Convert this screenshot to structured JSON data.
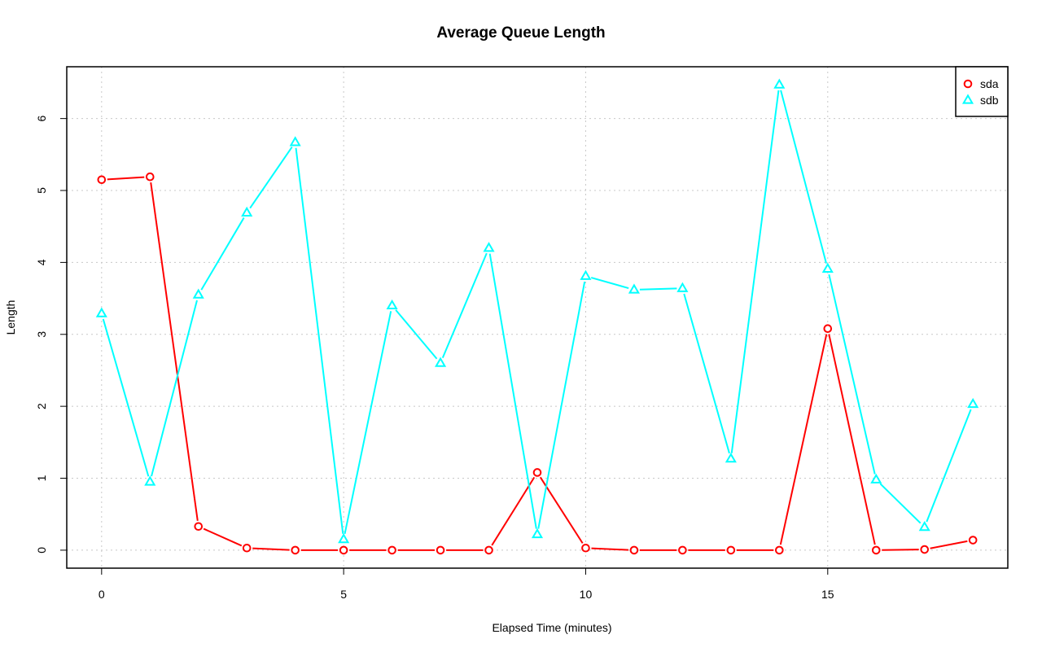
{
  "chart_data": {
    "type": "line",
    "title": "Average Queue Length",
    "xlabel": "Elapsed Time (minutes)",
    "ylabel": "Length",
    "xlim": [
      -0.72,
      18.72
    ],
    "ylim": [
      -0.25,
      6.72
    ],
    "x_ticks": [
      0,
      5,
      10,
      15
    ],
    "y_ticks": [
      0,
      1,
      2,
      3,
      4,
      5,
      6
    ],
    "grid": true,
    "legend_position": "top-right",
    "x": [
      0,
      1,
      2,
      3,
      4,
      5,
      6,
      7,
      8,
      9,
      10,
      11,
      12,
      13,
      14,
      15,
      16,
      17,
      18
    ],
    "series": [
      {
        "name": "sda",
        "color": "#ff0000",
        "marker": "circle",
        "values": [
          5.15,
          5.19,
          0.33,
          0.03,
          0.0,
          0.0,
          0.0,
          0.0,
          0.0,
          1.08,
          0.03,
          0.0,
          0.0,
          0.0,
          0.0,
          3.08,
          0.0,
          0.01,
          0.14
        ]
      },
      {
        "name": "sdb",
        "color": "#00ffff",
        "marker": "triangle",
        "values": [
          3.29,
          0.95,
          3.55,
          4.69,
          5.67,
          0.15,
          3.4,
          2.6,
          4.2,
          0.22,
          3.81,
          3.62,
          3.64,
          1.27,
          6.47,
          3.91,
          0.98,
          0.32,
          2.03
        ]
      }
    ]
  }
}
